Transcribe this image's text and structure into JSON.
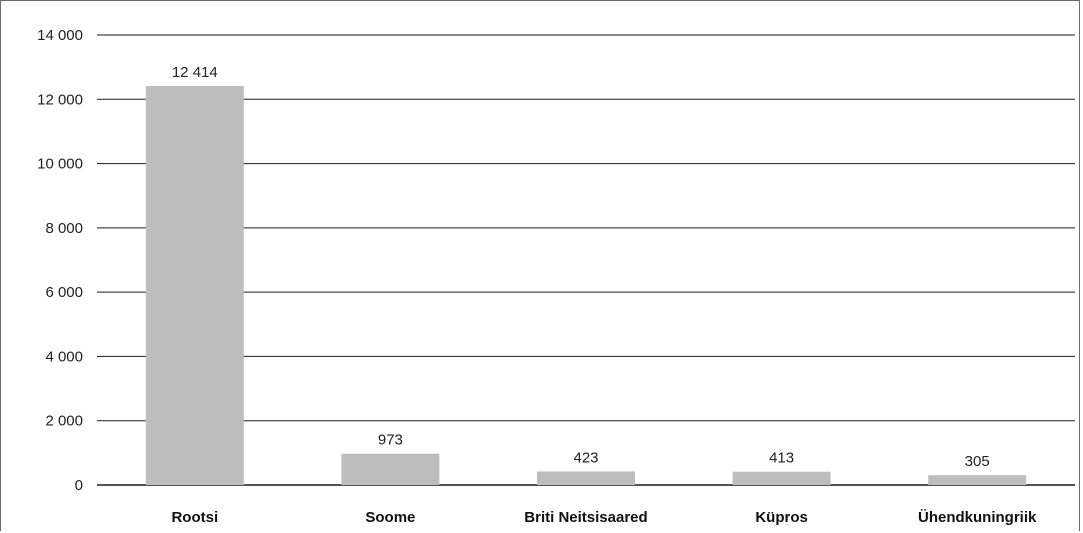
{
  "chart_data": {
    "type": "bar",
    "title": "",
    "xlabel": "",
    "ylabel": "",
    "categories": [
      "Rootsi",
      "Soome",
      "Briti Neitsisaared",
      "Küpros",
      "Ühendkuningriik"
    ],
    "values": [
      12414,
      973,
      423,
      413,
      305
    ],
    "data_labels": [
      "12 414",
      "973",
      "423",
      "413",
      "305"
    ],
    "ylim": [
      0,
      14000
    ],
    "yticks": [
      0,
      2000,
      4000,
      6000,
      8000,
      10000,
      12000,
      14000
    ],
    "ytick_labels": [
      "0",
      "2 000",
      "4 000",
      "6 000",
      "8 000",
      "10 000",
      "12 000",
      "14 000"
    ],
    "grid": true,
    "legend": "none",
    "colors": {
      "bar": "#bdbdbd",
      "grid": "#1a1a1a",
      "axis": "#1a1a1a"
    }
  }
}
